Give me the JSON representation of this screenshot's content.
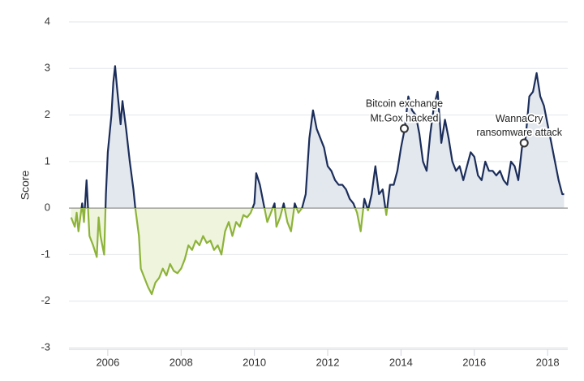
{
  "chart_data": {
    "type": "line",
    "y_label": "Score",
    "xlim": [
      2004.94,
      2018.55
    ],
    "ylim": [
      -3,
      4
    ],
    "xticks": [
      2006,
      2008,
      2010,
      2012,
      2014,
      2016,
      2018
    ],
    "yticks": [
      -3,
      -2,
      -1,
      0,
      1,
      2,
      3,
      4
    ],
    "grid": true,
    "color_positive": "#1b2d5a",
    "color_negative": "#8db33a",
    "fill_positive": "#e3e8ef",
    "fill_negative": "#eef5dc",
    "x": [
      2005.0,
      2005.1,
      2005.15,
      2005.2,
      2005.3,
      2005.35,
      2005.42,
      2005.5,
      2005.6,
      2005.7,
      2005.75,
      2005.8,
      2005.9,
      2005.95,
      2006.0,
      2006.1,
      2006.15,
      2006.2,
      2006.25,
      2006.35,
      2006.4,
      2006.5,
      2006.6,
      2006.7,
      2006.75,
      2006.85,
      2006.9,
      2007.0,
      2007.1,
      2007.2,
      2007.3,
      2007.4,
      2007.5,
      2007.6,
      2007.7,
      2007.8,
      2007.9,
      2008.0,
      2008.1,
      2008.2,
      2008.3,
      2008.4,
      2008.5,
      2008.6,
      2008.7,
      2008.8,
      2008.9,
      2009.0,
      2009.1,
      2009.2,
      2009.3,
      2009.4,
      2009.5,
      2009.6,
      2009.7,
      2009.8,
      2009.9,
      2010.0,
      2010.05,
      2010.15,
      2010.25,
      2010.35,
      2010.45,
      2010.55,
      2010.6,
      2010.7,
      2010.8,
      2010.9,
      2011.0,
      2011.1,
      2011.2,
      2011.3,
      2011.4,
      2011.5,
      2011.6,
      2011.7,
      2011.8,
      2011.9,
      2012.0,
      2012.1,
      2012.2,
      2012.3,
      2012.4,
      2012.5,
      2012.6,
      2012.7,
      2012.8,
      2012.9,
      2013.0,
      2013.1,
      2013.2,
      2013.3,
      2013.4,
      2013.5,
      2013.6,
      2013.7,
      2013.8,
      2013.9,
      2014.0,
      2014.1,
      2014.2,
      2014.3,
      2014.4,
      2014.5,
      2014.6,
      2014.7,
      2014.8,
      2014.9,
      2015.0,
      2015.1,
      2015.2,
      2015.3,
      2015.4,
      2015.5,
      2015.6,
      2015.7,
      2015.8,
      2015.9,
      2016.0,
      2016.1,
      2016.2,
      2016.3,
      2016.4,
      2016.5,
      2016.6,
      2016.7,
      2016.8,
      2016.9,
      2017.0,
      2017.1,
      2017.2,
      2017.3,
      2017.4,
      2017.5,
      2017.6,
      2017.7,
      2017.8,
      2017.9,
      2018.0,
      2018.1,
      2018.2,
      2018.3,
      2018.4,
      2018.45
    ],
    "values": [
      -0.2,
      -0.4,
      -0.1,
      -0.5,
      0.1,
      -0.3,
      0.6,
      -0.6,
      -0.8,
      -1.05,
      -0.2,
      -0.6,
      -1.0,
      0.3,
      1.2,
      2.0,
      2.7,
      3.05,
      2.6,
      1.8,
      2.3,
      1.7,
      1.0,
      0.4,
      0.0,
      -0.6,
      -1.3,
      -1.5,
      -1.7,
      -1.85,
      -1.6,
      -1.5,
      -1.3,
      -1.45,
      -1.2,
      -1.35,
      -1.4,
      -1.3,
      -1.1,
      -0.8,
      -0.9,
      -0.7,
      -0.8,
      -0.6,
      -0.75,
      -0.7,
      -0.9,
      -0.8,
      -1.0,
      -0.5,
      -0.3,
      -0.6,
      -0.3,
      -0.4,
      -0.15,
      -0.2,
      -0.1,
      0.1,
      0.75,
      0.5,
      0.1,
      -0.3,
      -0.1,
      0.1,
      -0.4,
      -0.2,
      0.1,
      -0.3,
      -0.5,
      0.1,
      -0.1,
      0.0,
      0.3,
      1.5,
      2.1,
      1.7,
      1.5,
      1.3,
      0.9,
      0.8,
      0.6,
      0.5,
      0.5,
      0.4,
      0.2,
      0.1,
      -0.1,
      -0.5,
      0.2,
      -0.05,
      0.3,
      0.9,
      0.3,
      0.4,
      -0.15,
      0.5,
      0.5,
      0.8,
      1.3,
      1.7,
      2.4,
      2.1,
      2.0,
      1.6,
      1.0,
      0.8,
      1.6,
      2.2,
      2.5,
      1.4,
      1.9,
      1.5,
      1.0,
      0.8,
      0.9,
      0.6,
      0.9,
      1.2,
      1.1,
      0.7,
      0.6,
      1.0,
      0.8,
      0.8,
      0.7,
      0.8,
      0.6,
      0.5,
      1.0,
      0.9,
      0.6,
      1.3,
      1.5,
      2.4,
      2.5,
      2.9,
      2.4,
      2.2,
      1.8,
      1.4,
      1.0,
      0.6,
      0.3,
      0.3
    ],
    "annotations": [
      {
        "lines": [
          "Bitcoin exchange",
          "Mt.Gox hacked"
        ],
        "x": 2014.09,
        "y": 1.71
      },
      {
        "lines": [
          "WannaCry",
          "ransomware attack"
        ],
        "x": 2017.36,
        "y": 1.4
      }
    ]
  }
}
